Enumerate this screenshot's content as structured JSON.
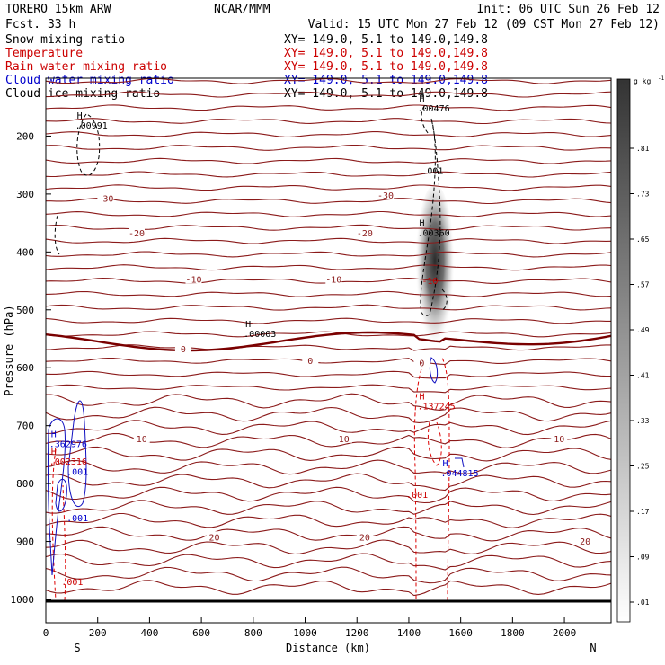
{
  "header": {
    "model": "TORERO   15km ARW",
    "org": "NCAR/MMM",
    "init": "Init: 06 UTC Sun 26 Feb 12",
    "forecast": "Fcst.    33 h",
    "valid": "Valid: 15 UTC Mon 27 Feb 12 (09 CST Mon 27 Feb 12)"
  },
  "fields": [
    {
      "name": "Snow mixing ratio",
      "xy": "XY= 149.0,  5.1 to 149.0,149.8",
      "color": "#000000"
    },
    {
      "name": "Temperature",
      "xy": "XY= 149.0,  5.1 to 149.0,149.8",
      "color": "#cc0000"
    },
    {
      "name": "Rain water mixing ratio",
      "xy": "XY= 149.0,  5.1 to 149.0,149.8",
      "color": "#cc0000"
    },
    {
      "name": "Cloud water mixing ratio",
      "xy": "XY= 149.0,  5.1 to 149.0,149.8",
      "color": "#0000cc"
    },
    {
      "name": "Cloud ice mixing ratio",
      "xy": "XY= 149.0,  5.1 to 149.0,149.8",
      "color": "#000000"
    }
  ],
  "colors": {
    "temperature": "#8b1a1a",
    "zero_isotherm": "#7a0000",
    "rain": "#dd0000",
    "cloud_water": "#1010c0",
    "snow": "#000000",
    "ground": "#000000"
  },
  "chart_data": {
    "type": "cross-section",
    "xlabel": "Distance (km)",
    "ylabel": "Pressure (hPa)",
    "xlim": [
      0,
      2180
    ],
    "ylim": [
      1000,
      100
    ],
    "x_ticks": [
      0,
      200,
      400,
      600,
      800,
      1000,
      1200,
      1400,
      1600,
      1800,
      2000
    ],
    "y_ticks": [
      200,
      300,
      400,
      500,
      600,
      700,
      800,
      900,
      1000
    ],
    "endpoints": {
      "left": "S",
      "right": "N"
    },
    "colorbar": {
      "field": "Cloud ice mixing ratio",
      "units": "g kg",
      "unit_exponent": "-1",
      "labels": [
        ".01",
        ".09",
        ".17",
        ".25",
        ".33",
        ".41",
        ".49",
        ".57",
        ".65",
        ".73",
        ".81"
      ]
    },
    "isotherm_labels": [
      {
        "text": "-30",
        "x": 230,
        "p": 310
      },
      {
        "text": "-30",
        "x": 1310,
        "p": 305
      },
      {
        "text": "-20",
        "x": 350,
        "p": 370
      },
      {
        "text": "-20",
        "x": 1230,
        "p": 370
      },
      {
        "text": "-10",
        "x": 570,
        "p": 450
      },
      {
        "text": "-10",
        "x": 1110,
        "p": 450
      },
      {
        "text": "0",
        "x": 530,
        "p": 570
      },
      {
        "text": "0",
        "x": 1020,
        "p": 590
      },
      {
        "text": "0",
        "x": 1450,
        "p": 594
      },
      {
        "text": "10",
        "x": 370,
        "p": 725
      },
      {
        "text": "10",
        "x": 1150,
        "p": 725
      },
      {
        "text": "10",
        "x": 1980,
        "p": 725
      },
      {
        "text": "20",
        "x": 650,
        "p": 895
      },
      {
        "text": "20",
        "x": 1230,
        "p": 895
      },
      {
        "text": "20",
        "x": 2080,
        "p": 902
      }
    ],
    "extrema": [
      {
        "marker": "H",
        "value": ".00991",
        "x": 120,
        "p": 170,
        "color": "#000000"
      },
      {
        "marker": "H",
        "value": ".00476",
        "x": 1440,
        "p": 140,
        "color": "#000000"
      },
      {
        "marker": "H",
        "value": ".00360",
        "x": 1440,
        "p": 355,
        "color": "#000000"
      },
      {
        "marker": "H",
        "value": ".00003",
        "x": 770,
        "p": 530,
        "color": "#000000"
      },
      {
        "marker": "H",
        "value": ".137245",
        "x": 1440,
        "p": 655,
        "color": "#cc0000"
      },
      {
        "marker": "H",
        "value": ".044815",
        "x": 1530,
        "p": 770,
        "color": "#0000cc"
      },
      {
        "marker": "H",
        "value": ".362976",
        "x": 20,
        "p": 720,
        "color": "#0000cc"
      },
      {
        "marker": "H",
        "value": ".002316",
        "x": 20,
        "p": 750,
        "color": "#cc0000"
      }
    ],
    "contour_labels": [
      {
        "text": ".001",
        "x": 1450,
        "p": 265,
        "color": "#000000"
      },
      {
        "text": "-10",
        "x": 1450,
        "p": 455,
        "color": "#cc0000"
      },
      {
        "text": ".001",
        "x": 1390,
        "p": 825,
        "color": "#cc0000"
      },
      {
        "text": ".001",
        "x": 80,
        "p": 785,
        "color": "#0000cc"
      },
      {
        "text": ".001",
        "x": 80,
        "p": 865,
        "color": "#0000cc"
      },
      {
        "text": ".001",
        "x": 60,
        "p": 975,
        "color": "#cc0000"
      }
    ]
  }
}
